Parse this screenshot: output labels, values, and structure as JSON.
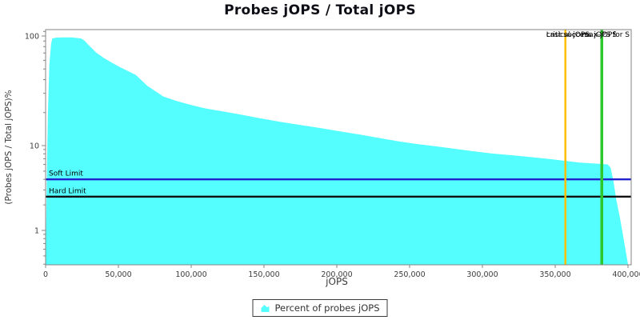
{
  "chart_data": {
    "type": "area",
    "title": "Probes jOPS / Total jOPS",
    "xlabel": "jOPS",
    "ylabel": "(Probes jOPS / Total jOPS)%",
    "x_axis": {
      "min": 0,
      "max": 400000,
      "ticks": [
        {
          "v": 0,
          "label": "0"
        },
        {
          "v": 50000,
          "label": "50,000"
        },
        {
          "v": 100000,
          "label": "100,000"
        },
        {
          "v": 150000,
          "label": "150,000"
        },
        {
          "v": 200000,
          "label": "200,000"
        },
        {
          "v": 250000,
          "label": "250,000"
        },
        {
          "v": 300000,
          "label": "300,000"
        },
        {
          "v": 350000,
          "label": "350,000"
        },
        {
          "v": 400000,
          "label": "400,000"
        }
      ]
    },
    "y_axis": {
      "scale": "log",
      "min": 0.4,
      "max": 114,
      "ticks": [
        {
          "v": 100,
          "label": "100"
        },
        {
          "v": 10,
          "label": "10"
        },
        {
          "v": 1,
          "label": "1"
        }
      ]
    },
    "series": [
      {
        "name": "Percent of probes jOPS",
        "color": "#55FEFE",
        "points": [
          [
            0,
            0.4
          ],
          [
            900,
            5
          ],
          [
            1600,
            20
          ],
          [
            2600,
            55
          ],
          [
            3800,
            85
          ],
          [
            4600,
            95
          ],
          [
            7000,
            96.5
          ],
          [
            12000,
            97
          ],
          [
            18000,
            97
          ],
          [
            24500,
            95
          ],
          [
            27000,
            90
          ],
          [
            29000,
            84
          ],
          [
            32000,
            77
          ],
          [
            34500,
            71
          ],
          [
            40000,
            63
          ],
          [
            45500,
            57
          ],
          [
            51000,
            52
          ],
          [
            56500,
            48
          ],
          [
            62000,
            44
          ],
          [
            70000,
            35
          ],
          [
            81000,
            28
          ],
          [
            90000,
            25.5
          ],
          [
            100000,
            23.5
          ],
          [
            110000,
            21.8
          ],
          [
            120000,
            20.7
          ],
          [
            133000,
            19.3
          ],
          [
            147000,
            17.8
          ],
          [
            161000,
            16.5
          ],
          [
            175000,
            15.4
          ],
          [
            188000,
            14.5
          ],
          [
            202000,
            13.5
          ],
          [
            216000,
            12.6
          ],
          [
            230000,
            11.7
          ],
          [
            243000,
            10.9
          ],
          [
            256000,
            10.3
          ],
          [
            268000,
            9.8
          ],
          [
            280000,
            9.2
          ],
          [
            293000,
            8.6
          ],
          [
            306000,
            8.1
          ],
          [
            320000,
            7.7
          ],
          [
            334000,
            7.3
          ],
          [
            348000,
            6.9
          ],
          [
            357000,
            6.6
          ],
          [
            367000,
            6.3
          ],
          [
            377000,
            6.15
          ],
          [
            386000,
            6.0
          ],
          [
            388000,
            5.5
          ],
          [
            390000,
            3.8
          ],
          [
            392000,
            2.3
          ],
          [
            394500,
            1.4
          ],
          [
            397000,
            0.8
          ],
          [
            399000,
            0.5
          ],
          [
            400000,
            0.4
          ]
        ]
      }
    ],
    "limit_lines": [
      {
        "label": "Soft Limit",
        "value": 4,
        "color": "#2323CD"
      },
      {
        "label": "Hard Limit",
        "value": 2.5,
        "color": "#111111"
      }
    ],
    "marker_lines": [
      {
        "label": "critical-jOPS",
        "value": 357000,
        "color": "#FFBE00",
        "line": true
      },
      {
        "label": "max-jOPS",
        "value": 382000,
        "color": "#2CC82C",
        "line": true
      },
      {
        "label": "Last success jOPS for S",
        "value": 382000,
        "color": "#2CC82C",
        "line": false
      }
    ],
    "legend": {
      "label": "Percent of probes jOPS",
      "position": "bottom"
    }
  },
  "colors": {
    "area_fill": "#55FEFE",
    "soft_limit": "#2323CD",
    "hard_limit": "#111111",
    "critical_marker": "#FFBE00",
    "max_marker": "#2CC82C",
    "plot_border": "#848484",
    "tick_text": "#3d3d3d"
  }
}
